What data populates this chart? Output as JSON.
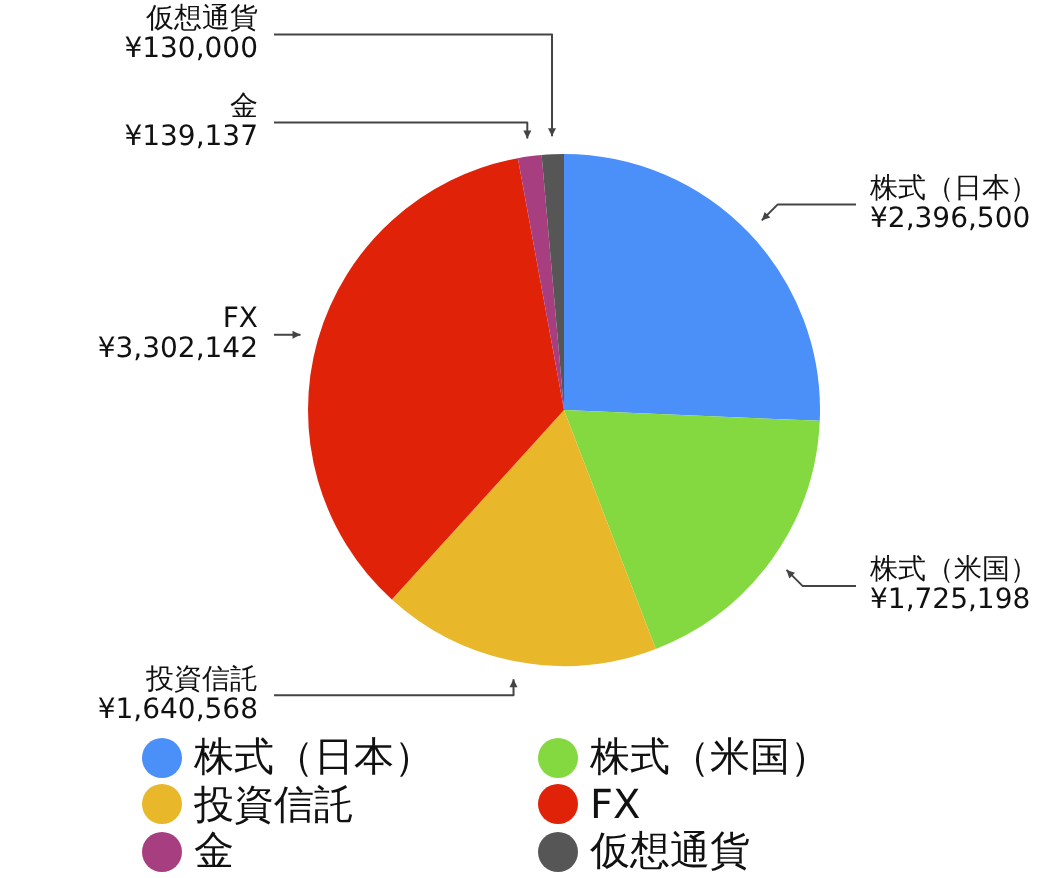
{
  "chart_data": {
    "type": "pie",
    "categories": [
      "株式（日本）",
      "株式（米国）",
      "投資信託",
      "FX",
      "金",
      "仮想通貨"
    ],
    "values": [
      2396500,
      1725198,
      1640568,
      3302142,
      139137,
      130000
    ],
    "colors": [
      "#4b8ff8",
      "#84d940",
      "#e8b72a",
      "#df2208",
      "#a63e80",
      "#565656"
    ],
    "value_labels": [
      "¥2,396,500",
      "¥1,725,198",
      "¥1,640,568",
      "¥3,302,142",
      "¥139,137",
      "¥130,000"
    ],
    "legend": "bottom"
  }
}
